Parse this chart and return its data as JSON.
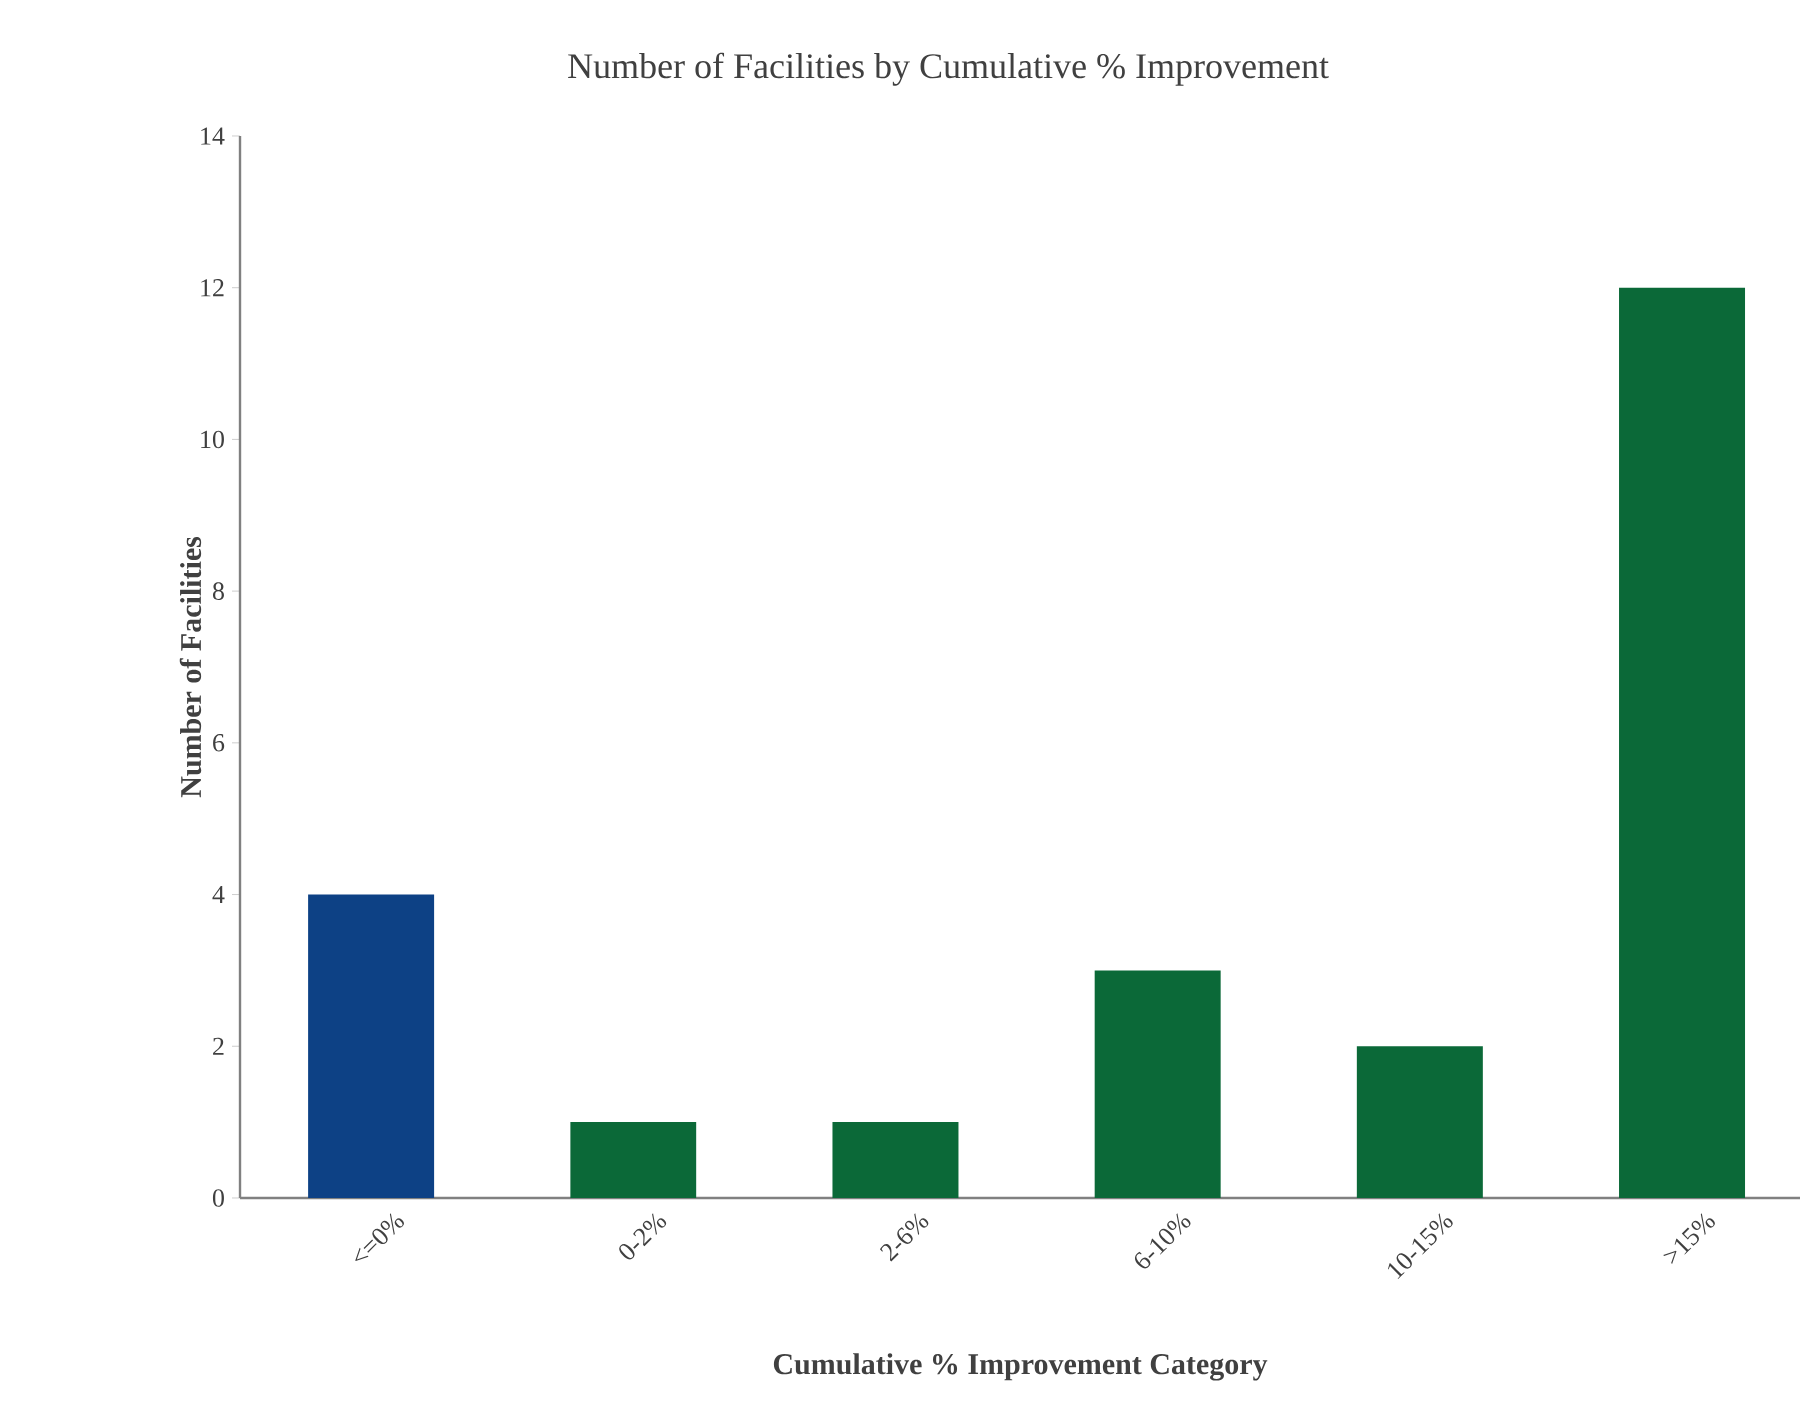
{
  "chart_data": {
    "type": "bar",
    "title": "Number of Facilities by Cumulative % Improvement",
    "xlabel": "Cumulative % Improvement Category",
    "ylabel": "Number of Facilities",
    "categories": [
      "<=0%",
      "0-2%",
      "2-6%",
      "6-10%",
      "10-15%",
      ">15%"
    ],
    "values": [
      4,
      1,
      1,
      3,
      2,
      12
    ],
    "colors": [
      "#0d4185",
      "#0b6938",
      "#0b6938",
      "#0b6938",
      "#0b6938",
      "#0b6938"
    ],
    "ylim": [
      0,
      14
    ],
    "yticks": [
      0,
      2,
      4,
      6,
      8,
      10,
      12,
      14
    ],
    "grid": false
  }
}
